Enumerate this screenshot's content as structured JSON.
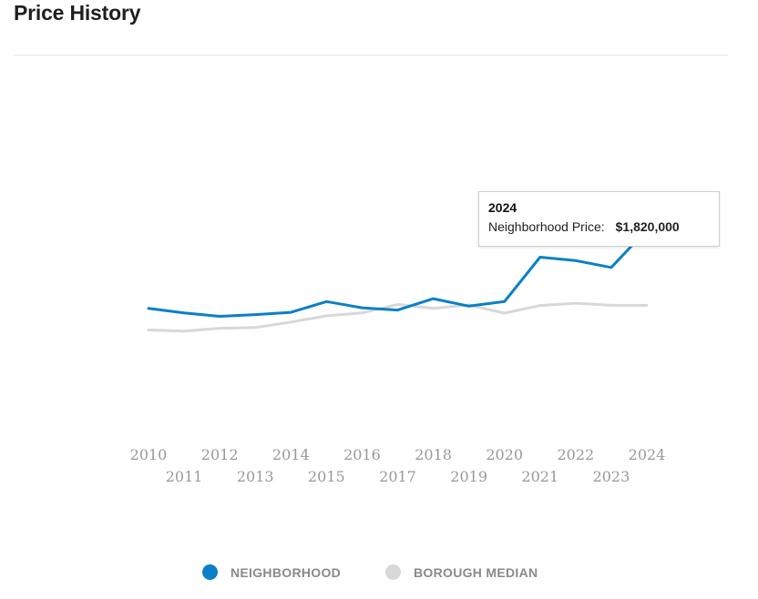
{
  "page": {
    "title": "Price History"
  },
  "colors": {
    "neighborhood": "#0a80c6",
    "borough": "#d8d8d8",
    "axis_text": "#999999"
  },
  "tooltip": {
    "year": "2024",
    "label": "Neighborhood Price:",
    "value": "$1,820,000"
  },
  "legend": {
    "items": [
      {
        "label": "NEIGHBORHOOD",
        "color": "#0a80c6"
      },
      {
        "label": "BOROUGH MEDIAN",
        "color": "#d8d8d8"
      }
    ]
  },
  "chart_data": {
    "type": "line",
    "x": [
      "2010",
      "2011",
      "2012",
      "2013",
      "2014",
      "2015",
      "2016",
      "2017",
      "2018",
      "2019",
      "2020",
      "2021",
      "2022",
      "2023",
      "2024"
    ],
    "ylim": [
      0,
      3000000
    ],
    "grid": false,
    "legend_position": "bottom",
    "series": [
      {
        "name": "NEIGHBORHOOD",
        "values": [
          1130000,
          1090000,
          1060000,
          1075000,
          1095000,
          1190000,
          1135000,
          1115000,
          1215000,
          1150000,
          1190000,
          1580000,
          1550000,
          1490000,
          1820000
        ]
      },
      {
        "name": "BOROUGH MEDIAN",
        "values": [
          940000,
          930000,
          955000,
          962000,
          1010000,
          1065000,
          1090000,
          1165000,
          1130000,
          1160000,
          1088000,
          1155000,
          1175000,
          1157000,
          1157000
        ]
      }
    ]
  }
}
